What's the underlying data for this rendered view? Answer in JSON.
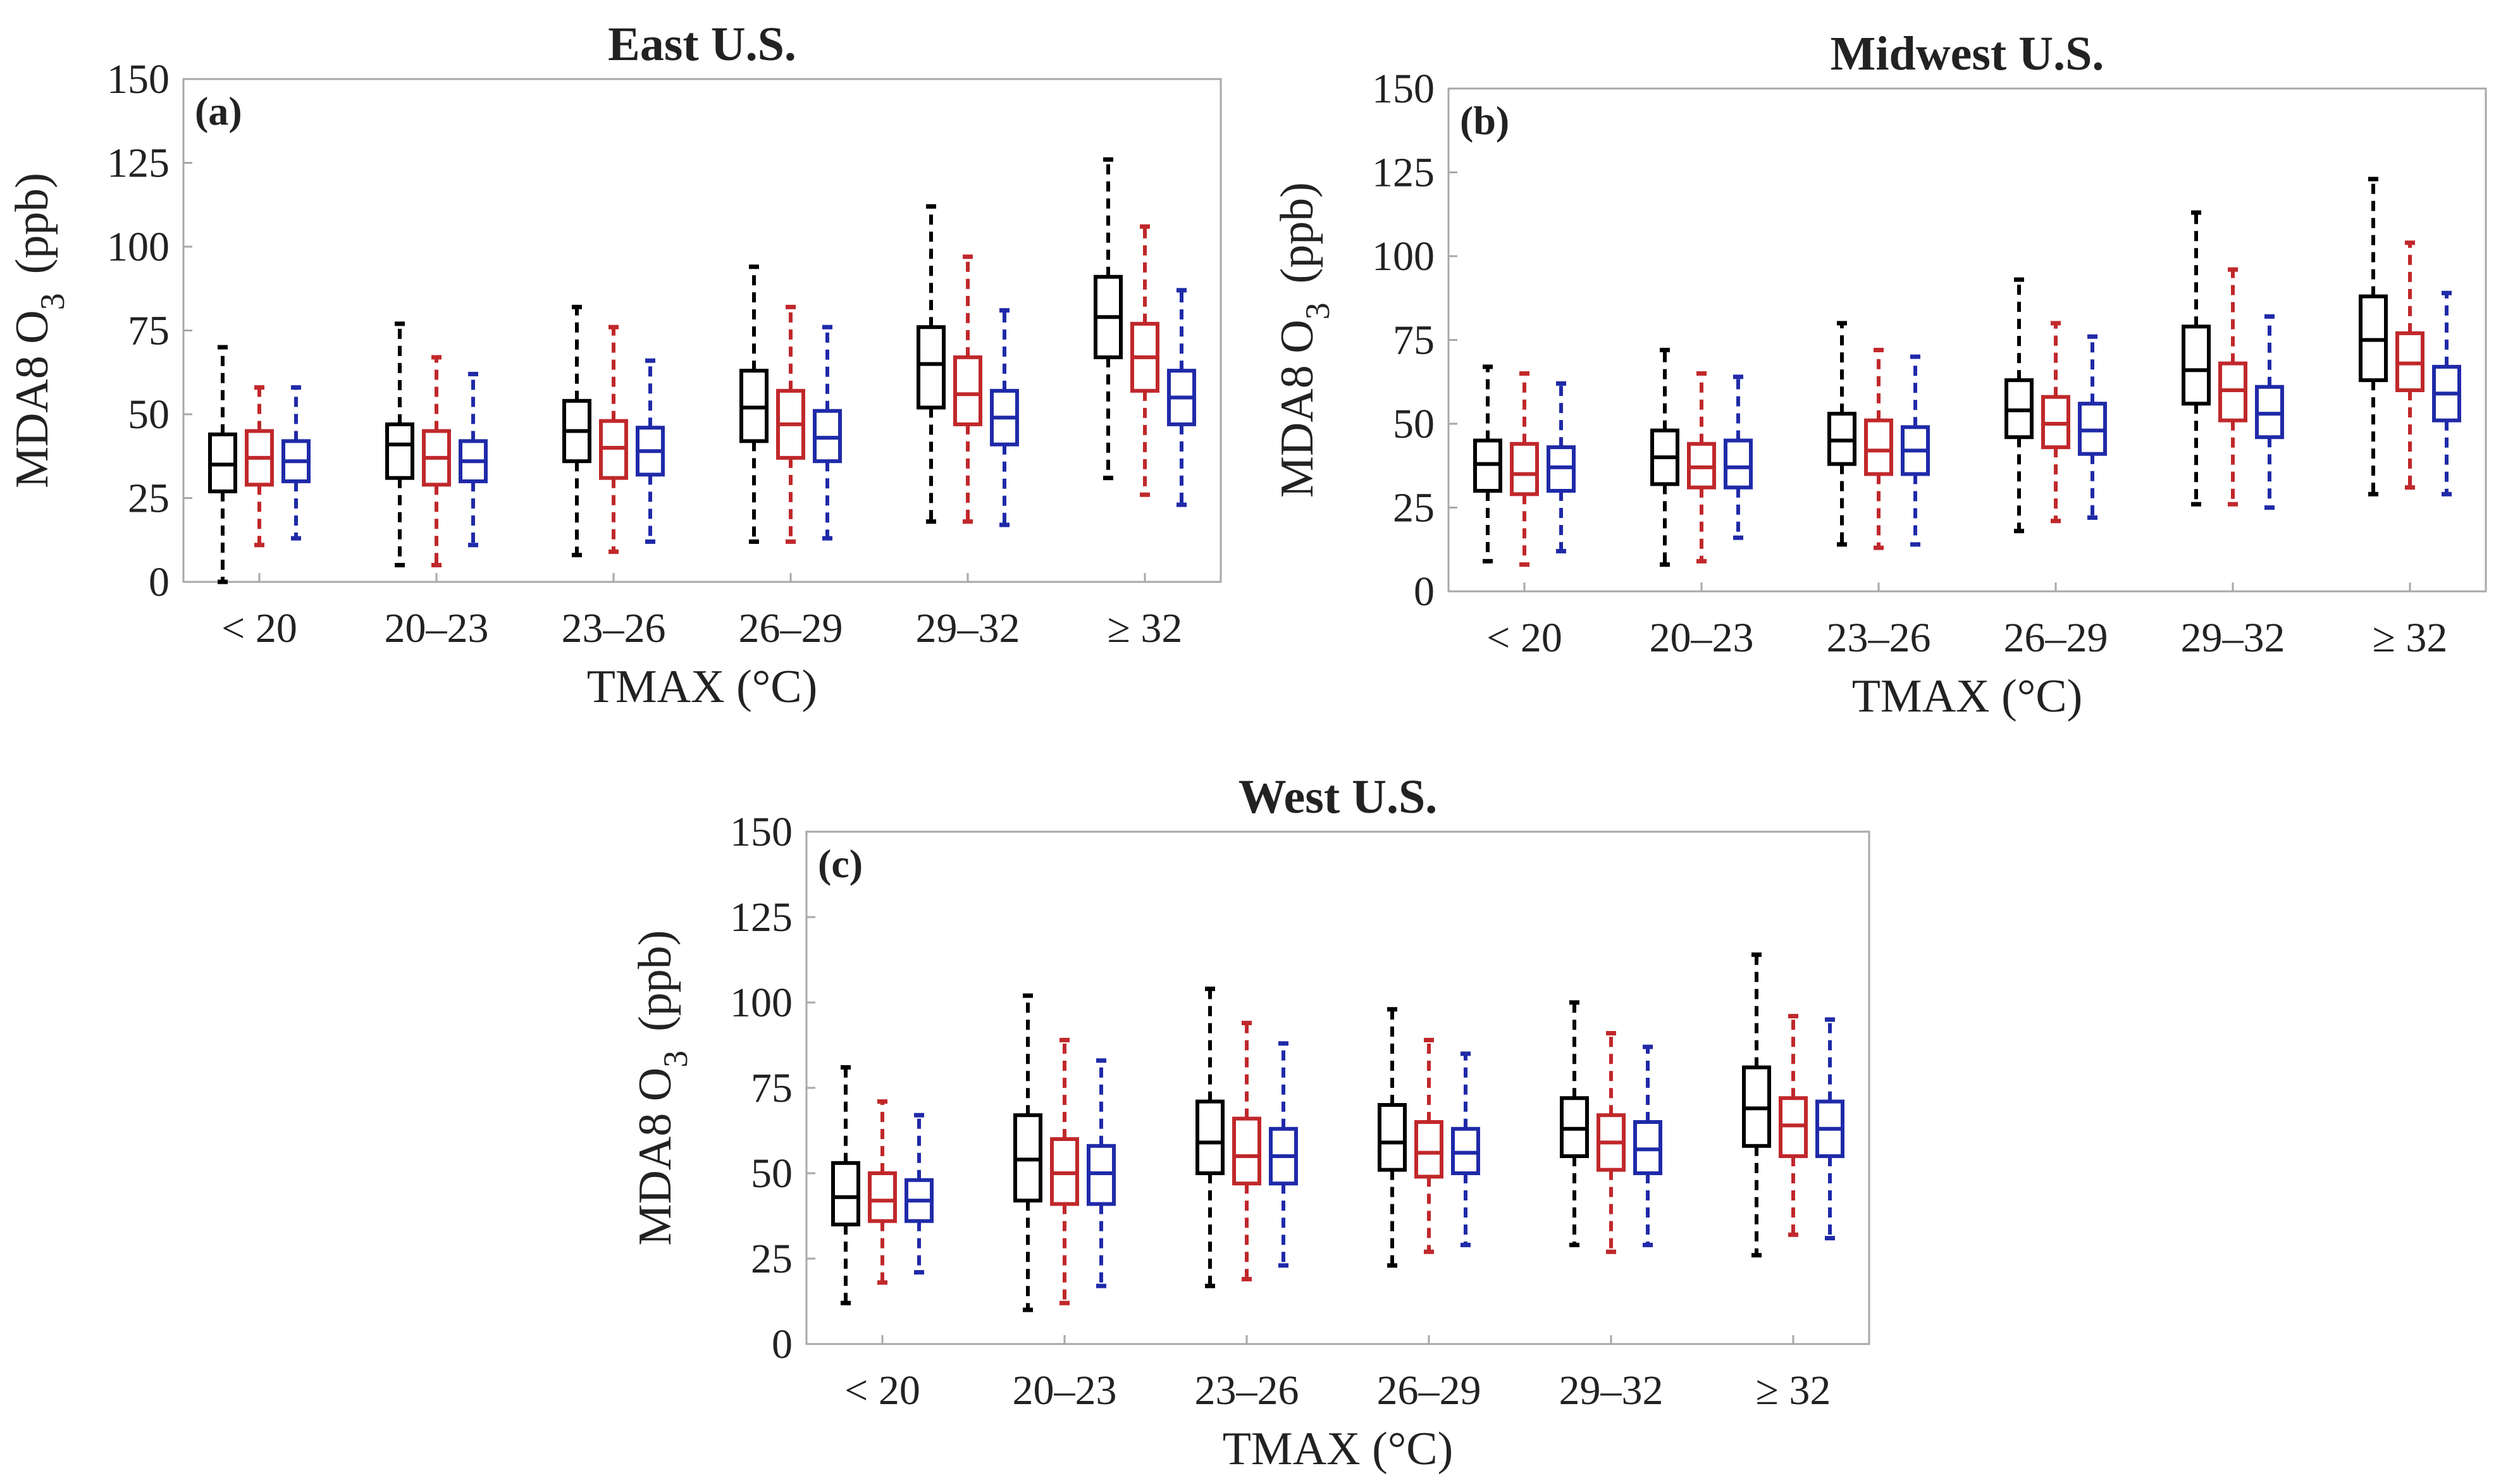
{
  "figure": {
    "series_colors": [
      "#000000",
      "#c0282b",
      "#1f2aa8"
    ]
  },
  "chart_data": [
    {
      "type": "boxplot",
      "panel_label": "(a)",
      "title": "East U.S.",
      "xlabel": "TMAX (°C)",
      "ylabel": "MDA8  O",
      "ylabel_subscript": "3",
      "ylabel_units": "(ppb)",
      "ylim": [
        0,
        150
      ],
      "yticks": [
        0,
        25,
        50,
        75,
        100,
        125,
        150
      ],
      "categories": [
        "< 20",
        "20–23",
        "23–26",
        "26–29",
        "29–32",
        "≥ 32"
      ],
      "series": [
        {
          "index": 0,
          "boxes": [
            {
              "whislo": 0,
              "q1": 27,
              "med": 35,
              "q3": 44,
              "whishi": 70
            },
            {
              "whislo": 5,
              "q1": 31,
              "med": 41,
              "q3": 47,
              "whishi": 77
            },
            {
              "whislo": 8,
              "q1": 36,
              "med": 45,
              "q3": 54,
              "whishi": 82
            },
            {
              "whislo": 12,
              "q1": 42,
              "med": 52,
              "q3": 63,
              "whishi": 94
            },
            {
              "whislo": 18,
              "q1": 52,
              "med": 65,
              "q3": 76,
              "whishi": 112
            },
            {
              "whislo": 31,
              "q1": 67,
              "med": 79,
              "q3": 91,
              "whishi": 126
            }
          ]
        },
        {
          "index": 1,
          "boxes": [
            {
              "whislo": 11,
              "q1": 29,
              "med": 37,
              "q3": 45,
              "whishi": 58
            },
            {
              "whislo": 5,
              "q1": 29,
              "med": 37,
              "q3": 45,
              "whishi": 67
            },
            {
              "whislo": 9,
              "q1": 31,
              "med": 40,
              "q3": 48,
              "whishi": 76
            },
            {
              "whislo": 12,
              "q1": 37,
              "med": 47,
              "q3": 57,
              "whishi": 82
            },
            {
              "whislo": 18,
              "q1": 47,
              "med": 56,
              "q3": 67,
              "whishi": 97
            },
            {
              "whislo": 26,
              "q1": 57,
              "med": 67,
              "q3": 77,
              "whishi": 106
            }
          ]
        },
        {
          "index": 2,
          "boxes": [
            {
              "whislo": 13,
              "q1": 30,
              "med": 36,
              "q3": 42,
              "whishi": 58
            },
            {
              "whislo": 11,
              "q1": 30,
              "med": 36,
              "q3": 42,
              "whishi": 62
            },
            {
              "whislo": 12,
              "q1": 32,
              "med": 39,
              "q3": 46,
              "whishi": 66
            },
            {
              "whislo": 13,
              "q1": 36,
              "med": 43,
              "q3": 51,
              "whishi": 76
            },
            {
              "whislo": 17,
              "q1": 41,
              "med": 49,
              "q3": 57,
              "whishi": 81
            },
            {
              "whislo": 23,
              "q1": 47,
              "med": 55,
              "q3": 63,
              "whishi": 87
            }
          ]
        }
      ]
    },
    {
      "type": "boxplot",
      "panel_label": "(b)",
      "title": "Midwest U.S.",
      "xlabel": "TMAX (°C)",
      "ylabel": "MDA8  O",
      "ylabel_subscript": "3",
      "ylabel_units": "(ppb)",
      "ylim": [
        0,
        150
      ],
      "yticks": [
        0,
        25,
        50,
        75,
        100,
        125,
        150
      ],
      "categories": [
        "< 20",
        "20–23",
        "23–26",
        "26–29",
        "29–32",
        "≥ 32"
      ],
      "series": [
        {
          "index": 0,
          "boxes": [
            {
              "whislo": 9,
              "q1": 30,
              "med": 38,
              "q3": 45,
              "whishi": 67
            },
            {
              "whislo": 8,
              "q1": 32,
              "med": 40,
              "q3": 48,
              "whishi": 72
            },
            {
              "whislo": 14,
              "q1": 38,
              "med": 45,
              "q3": 53,
              "whishi": 80
            },
            {
              "whislo": 18,
              "q1": 46,
              "med": 54,
              "q3": 63,
              "whishi": 93
            },
            {
              "whislo": 26,
              "q1": 56,
              "med": 66,
              "q3": 79,
              "whishi": 113
            },
            {
              "whislo": 29,
              "q1": 63,
              "med": 75,
              "q3": 88,
              "whishi": 123
            }
          ]
        },
        {
          "index": 1,
          "boxes": [
            {
              "whislo": 8,
              "q1": 29,
              "med": 35,
              "q3": 44,
              "whishi": 65
            },
            {
              "whislo": 9,
              "q1": 31,
              "med": 37,
              "q3": 44,
              "whishi": 65
            },
            {
              "whislo": 13,
              "q1": 35,
              "med": 42,
              "q3": 51,
              "whishi": 72
            },
            {
              "whislo": 21,
              "q1": 43,
              "med": 50,
              "q3": 58,
              "whishi": 80
            },
            {
              "whislo": 26,
              "q1": 51,
              "med": 60,
              "q3": 68,
              "whishi": 96
            },
            {
              "whislo": 31,
              "q1": 60,
              "med": 68,
              "q3": 77,
              "whishi": 104
            }
          ]
        },
        {
          "index": 2,
          "boxes": [
            {
              "whislo": 12,
              "q1": 30,
              "med": 37,
              "q3": 43,
              "whishi": 62
            },
            {
              "whislo": 16,
              "q1": 31,
              "med": 37,
              "q3": 45,
              "whishi": 64
            },
            {
              "whislo": 14,
              "q1": 35,
              "med": 42,
              "q3": 49,
              "whishi": 70
            },
            {
              "whislo": 22,
              "q1": 41,
              "med": 48,
              "q3": 56,
              "whishi": 76
            },
            {
              "whislo": 25,
              "q1": 46,
              "med": 53,
              "q3": 61,
              "whishi": 82
            },
            {
              "whislo": 29,
              "q1": 51,
              "med": 59,
              "q3": 67,
              "whishi": 89
            }
          ]
        }
      ]
    },
    {
      "type": "boxplot",
      "panel_label": "(c)",
      "title": "West U.S.",
      "xlabel": "TMAX (°C)",
      "ylabel": "MDA8  O",
      "ylabel_subscript": "3",
      "ylabel_units": "(ppb)",
      "ylim": [
        0,
        150
      ],
      "yticks": [
        0,
        25,
        50,
        75,
        100,
        125,
        150
      ],
      "categories": [
        "< 20",
        "20–23",
        "23–26",
        "26–29",
        "29–32",
        "≥ 32"
      ],
      "series": [
        {
          "index": 0,
          "boxes": [
            {
              "whislo": 12,
              "q1": 35,
              "med": 43,
              "q3": 53,
              "whishi": 81
            },
            {
              "whislo": 10,
              "q1": 42,
              "med": 54,
              "q3": 67,
              "whishi": 102
            },
            {
              "whislo": 17,
              "q1": 50,
              "med": 59,
              "q3": 71,
              "whishi": 104
            },
            {
              "whislo": 23,
              "q1": 51,
              "med": 59,
              "q3": 70,
              "whishi": 98
            },
            {
              "whislo": 29,
              "q1": 55,
              "med": 63,
              "q3": 72,
              "whishi": 100
            },
            {
              "whislo": 26,
              "q1": 58,
              "med": 69,
              "q3": 81,
              "whishi": 114
            }
          ]
        },
        {
          "index": 1,
          "boxes": [
            {
              "whislo": 18,
              "q1": 36,
              "med": 42,
              "q3": 50,
              "whishi": 71
            },
            {
              "whislo": 12,
              "q1": 41,
              "med": 50,
              "q3": 60,
              "whishi": 89
            },
            {
              "whislo": 19,
              "q1": 47,
              "med": 55,
              "q3": 66,
              "whishi": 94
            },
            {
              "whislo": 27,
              "q1": 49,
              "med": 56,
              "q3": 65,
              "whishi": 89
            },
            {
              "whislo": 27,
              "q1": 51,
              "med": 59,
              "q3": 67,
              "whishi": 91
            },
            {
              "whislo": 32,
              "q1": 55,
              "med": 64,
              "q3": 72,
              "whishi": 96
            }
          ]
        },
        {
          "index": 2,
          "boxes": [
            {
              "whislo": 21,
              "q1": 36,
              "med": 42,
              "q3": 48,
              "whishi": 67
            },
            {
              "whislo": 17,
              "q1": 41,
              "med": 50,
              "q3": 58,
              "whishi": 83
            },
            {
              "whislo": 23,
              "q1": 47,
              "med": 55,
              "q3": 63,
              "whishi": 88
            },
            {
              "whislo": 29,
              "q1": 50,
              "med": 56,
              "q3": 63,
              "whishi": 85
            },
            {
              "whislo": 29,
              "q1": 50,
              "med": 57,
              "q3": 65,
              "whishi": 87
            },
            {
              "whislo": 31,
              "q1": 55,
              "med": 63,
              "q3": 71,
              "whishi": 95
            }
          ]
        }
      ]
    }
  ]
}
